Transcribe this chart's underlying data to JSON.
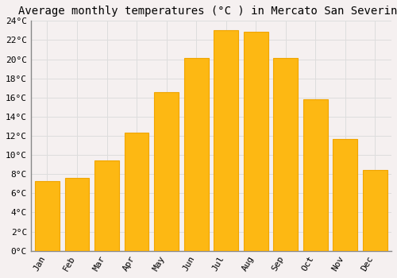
{
  "title": "Average monthly temperatures (°C ) in Mercato San Severino",
  "months": [
    "Jan",
    "Feb",
    "Mar",
    "Apr",
    "May",
    "Jun",
    "Jul",
    "Aug",
    "Sep",
    "Oct",
    "Nov",
    "Dec"
  ],
  "temperatures": [
    7.3,
    7.6,
    9.4,
    12.3,
    16.6,
    20.1,
    23.0,
    22.9,
    20.1,
    15.8,
    11.7,
    8.4
  ],
  "bar_color": "#FDB813",
  "bar_edge_color": "#F0A500",
  "background_color": "#F5F0F0",
  "grid_color": "#DDDDDD",
  "ylim": [
    0,
    24
  ],
  "ytick_interval": 2,
  "title_fontsize": 10,
  "tick_fontsize": 8,
  "font_family": "monospace"
}
